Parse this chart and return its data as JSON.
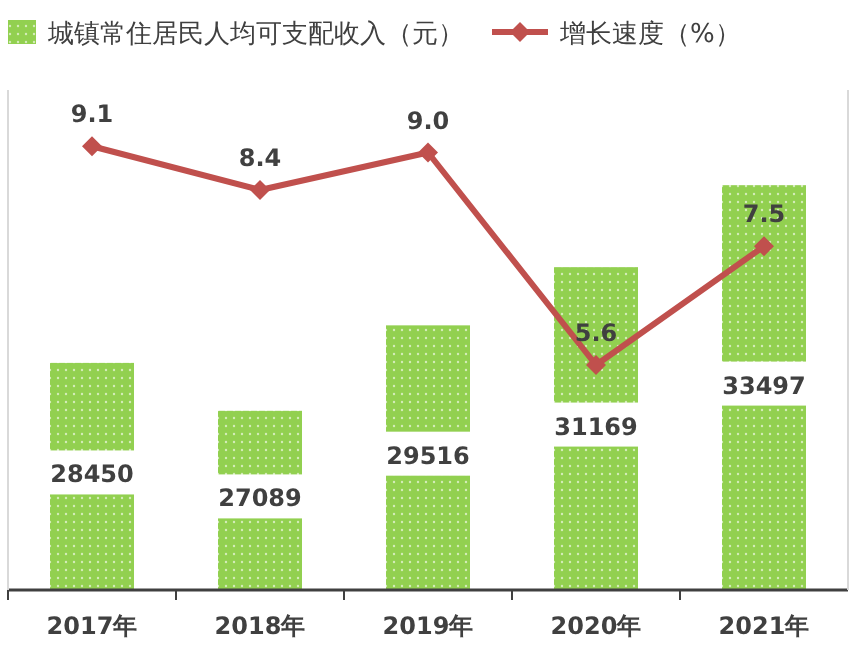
{
  "chart_data": {
    "type": "bar",
    "categories": [
      "2017年",
      "2018年",
      "2019年",
      "2020年",
      "2021年"
    ],
    "series": [
      {
        "name": "城镇常住居民人均可支配收入（元）",
        "type": "bar",
        "color": "#92d050",
        "values": [
          28450,
          27089,
          29516,
          31169,
          33497
        ]
      },
      {
        "name": "增长速度（%）",
        "type": "line",
        "axis": "y2",
        "color": "#c0504d",
        "marker": "diamond",
        "values": [
          9.1,
          8.4,
          9.0,
          5.6,
          7.5
        ],
        "value_labels": [
          "9.1",
          "8.4",
          "9.0",
          "5.6",
          "7.5"
        ]
      }
    ],
    "ylim": [
      22000,
      36200
    ],
    "y2lim": [
      2,
      10
    ],
    "tick_labels": "x",
    "data_labels": true,
    "legend": "top"
  }
}
